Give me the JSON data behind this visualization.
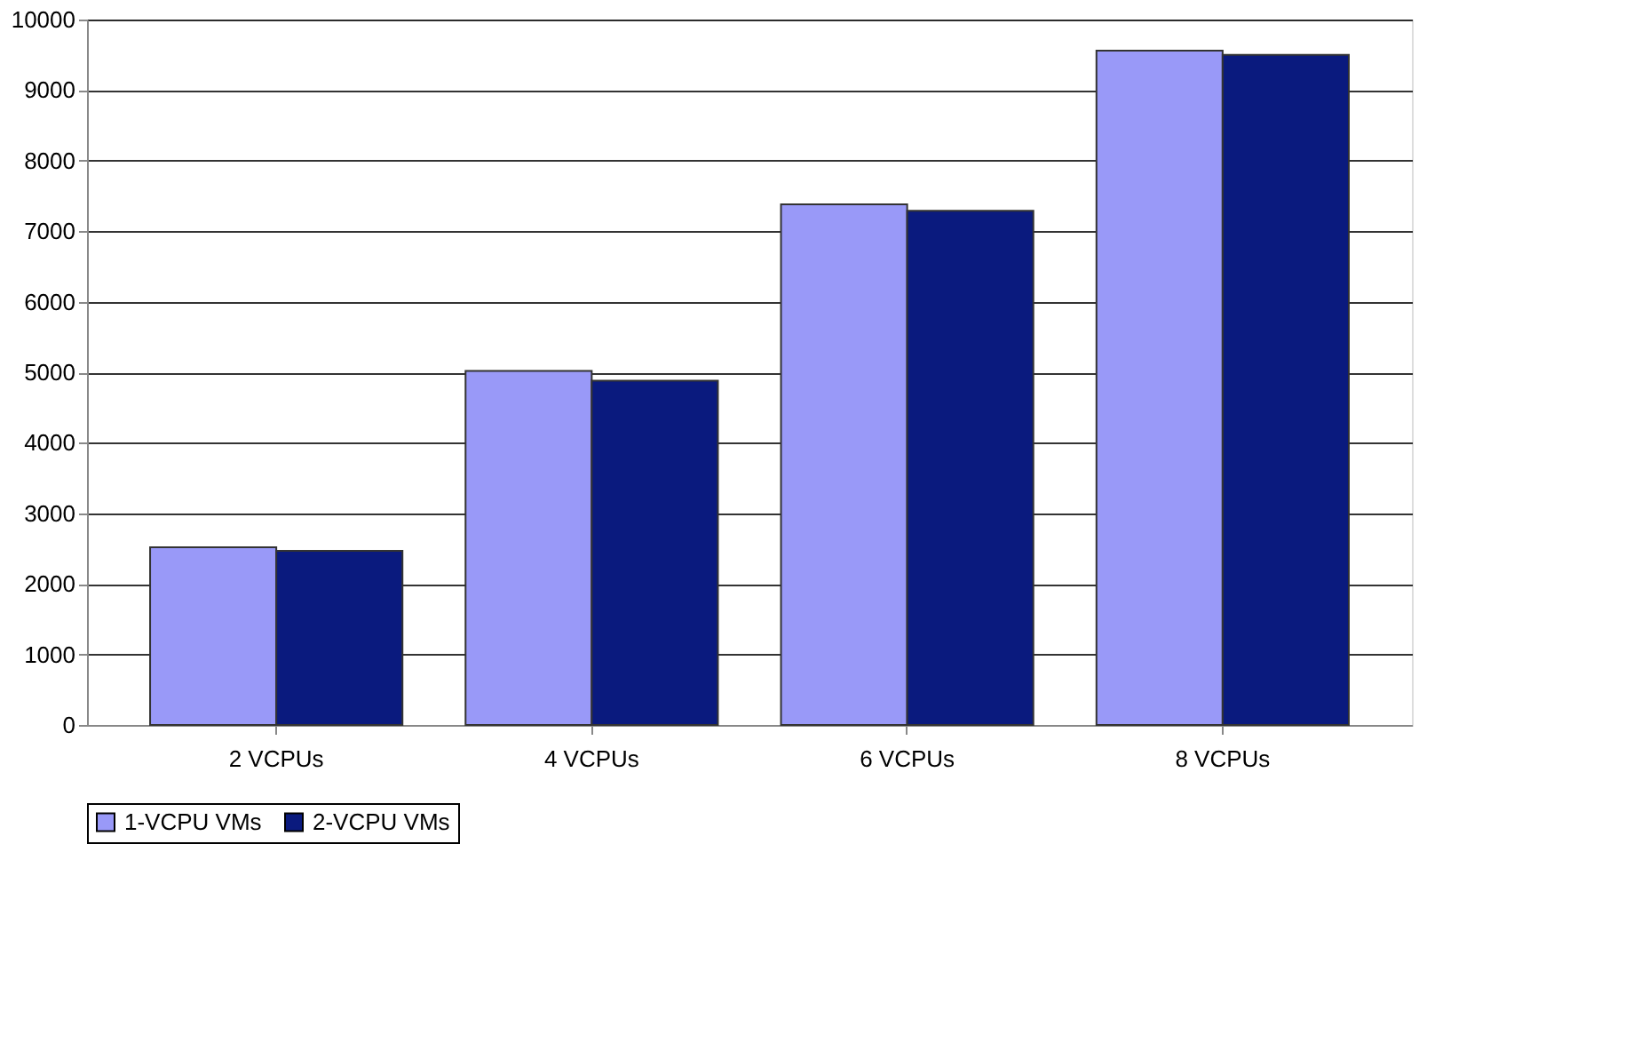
{
  "chart_data": {
    "type": "bar",
    "categories": [
      "2 VCPUs",
      "4 VCPUs",
      "6 VCPUs",
      "8 VCPUs"
    ],
    "series": [
      {
        "name": "1-VCPU VMs",
        "color": "#9999f8",
        "values": [
          2520,
          5020,
          7380,
          9560
        ]
      },
      {
        "name": "2-VCPU VMs",
        "color": "#0a1a7e",
        "values": [
          2470,
          4880,
          7290,
          9500
        ]
      }
    ],
    "ylim": [
      0,
      10000
    ],
    "yticks": [
      0,
      1000,
      2000,
      3000,
      4000,
      5000,
      6000,
      7000,
      8000,
      9000,
      10000
    ],
    "grid": "y",
    "legend": "bottom"
  }
}
